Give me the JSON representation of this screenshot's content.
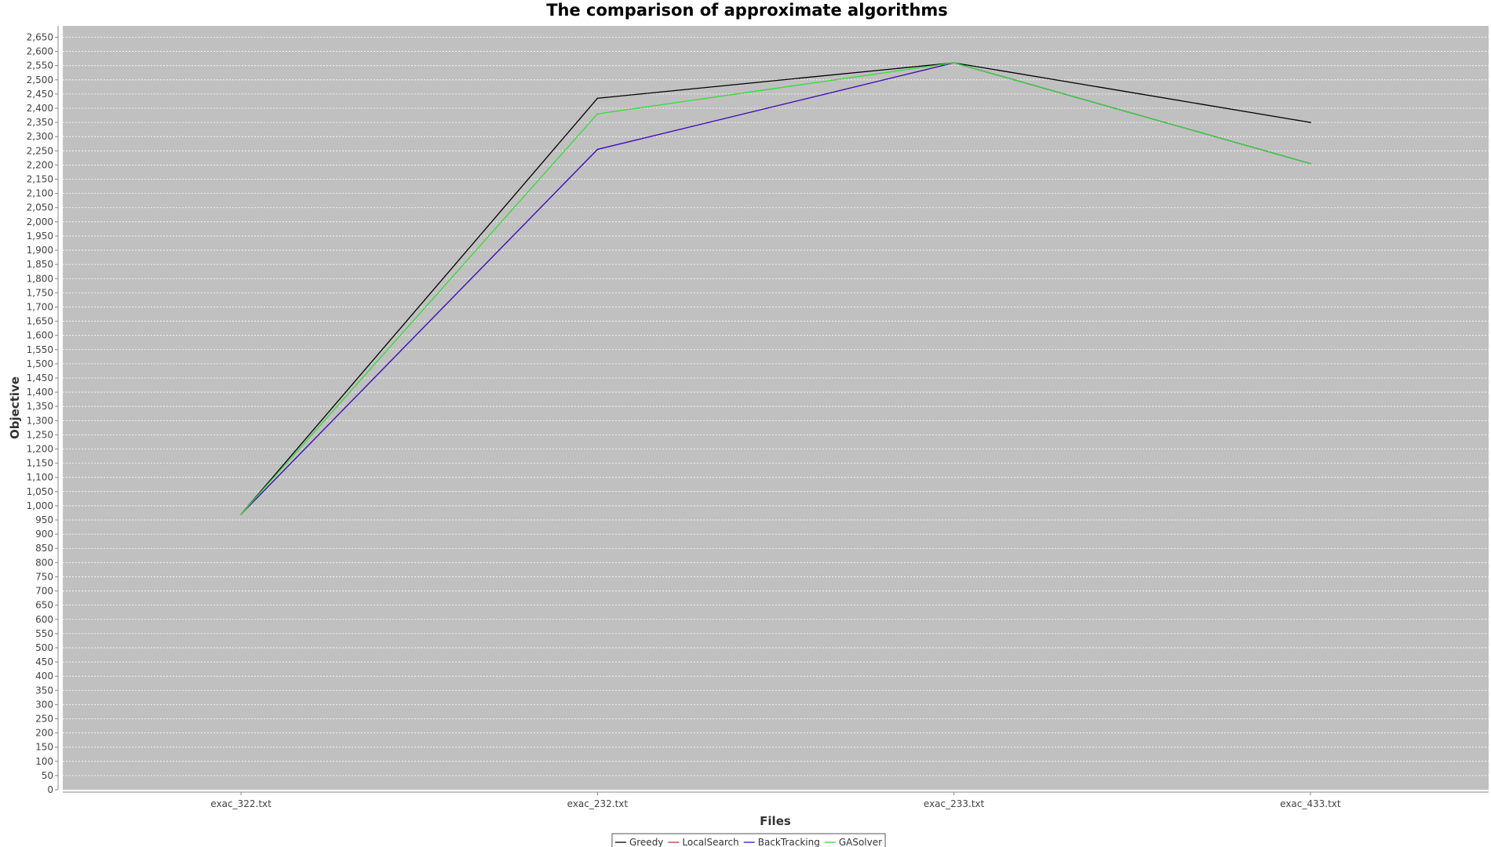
{
  "chart_data": {
    "type": "line",
    "title": "The comparison of approximate algorithms",
    "xlabel": "Files",
    "ylabel": "Objective",
    "categories": [
      "exac_322.txt",
      "exac_232.txt",
      "exac_233.txt",
      "exac_433.txt"
    ],
    "ylim": [
      0,
      2690
    ],
    "ytick_step": 50,
    "grid": true,
    "legend_position": "bottom-center",
    "plot_background": "#c0c0c0",
    "series": [
      {
        "name": "Greedy",
        "color": "#000000",
        "values": [
          970,
          2435,
          2560,
          2350
        ]
      },
      {
        "name": "LocalSearch",
        "color": "#cc3333",
        "values": [
          970,
          2255,
          2560,
          2205
        ]
      },
      {
        "name": "BackTracking",
        "color": "#3311cc",
        "values": [
          970,
          2255,
          2560,
          2205
        ]
      },
      {
        "name": "GASolver",
        "color": "#33dd33",
        "values": [
          970,
          2380,
          2560,
          2205
        ]
      }
    ]
  }
}
